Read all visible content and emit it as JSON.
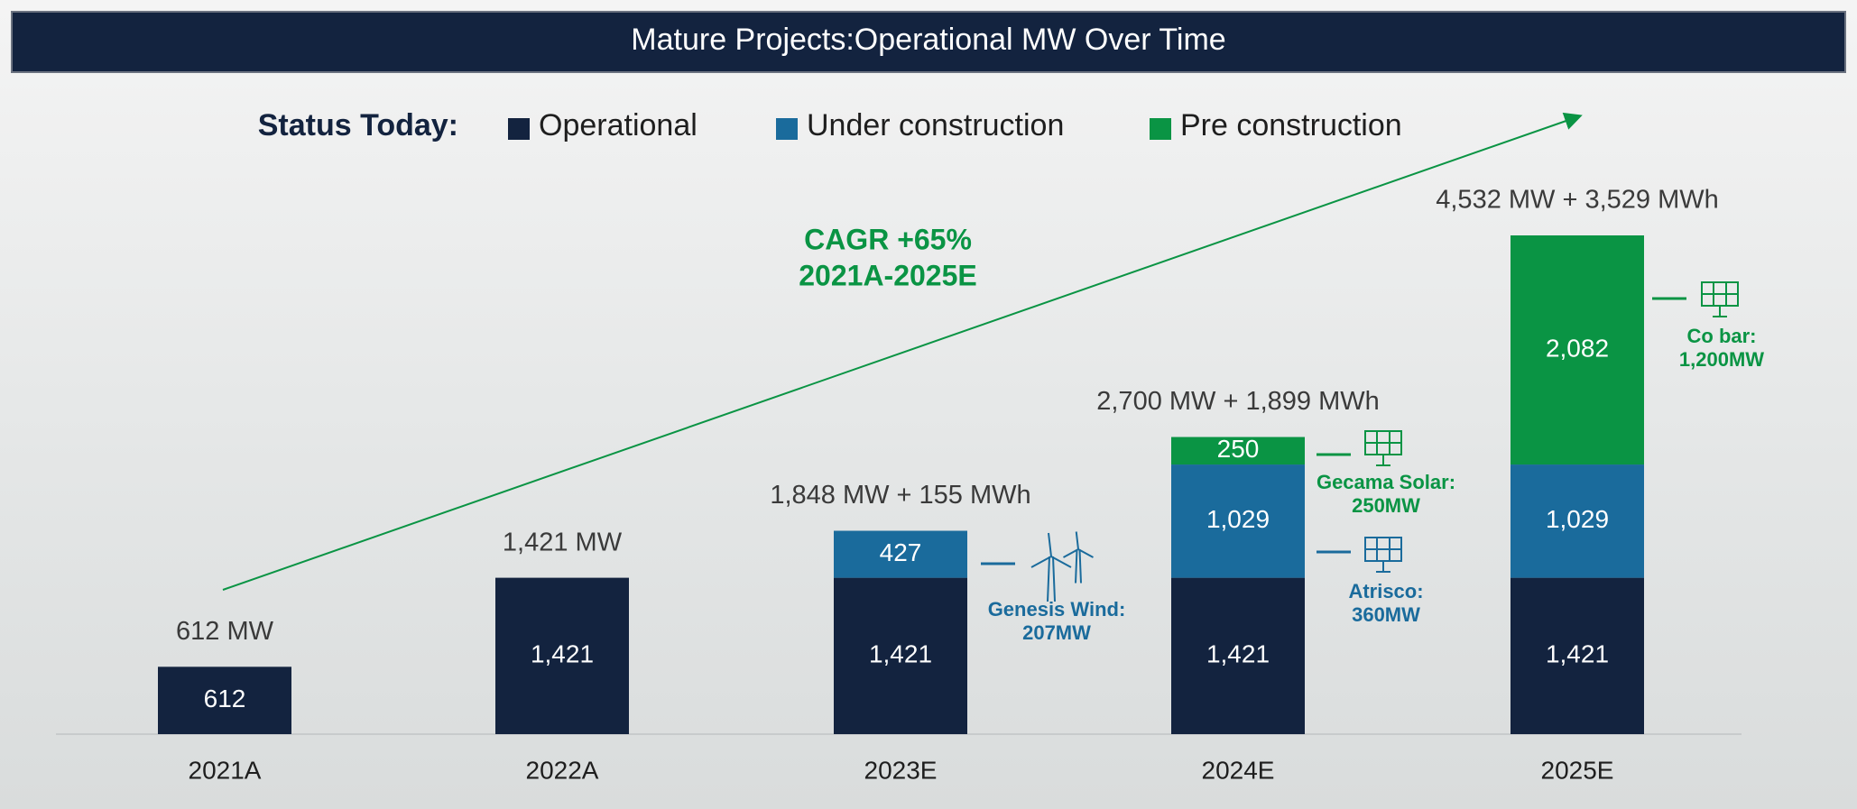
{
  "chart_data": {
    "type": "stacked_bar",
    "title": "Mature Projects:Operational MW Over Time",
    "legend_title": "Status Today:",
    "categories": [
      "2021A",
      "2022A",
      "2023E",
      "2024E",
      "2025E"
    ],
    "series": [
      {
        "name": "Operational",
        "color": "#13233f",
        "values": [
          612,
          1421,
          1421,
          1421,
          1421
        ],
        "value_labels": [
          "612",
          "1,421",
          "1,421",
          "1,421",
          "1,421"
        ]
      },
      {
        "name": "Under construction",
        "color": "#1a6b9c",
        "values": [
          null,
          null,
          427,
          1029,
          1029
        ],
        "value_labels": [
          null,
          null,
          "427",
          "1,029",
          "1,029"
        ]
      },
      {
        "name": "Pre construction",
        "color": "#0a9444",
        "values": [
          null,
          null,
          null,
          250,
          2082
        ],
        "value_labels": [
          null,
          null,
          null,
          "250",
          "2,082"
        ]
      }
    ],
    "total_labels": [
      "612 MW",
      "1,421 MW",
      "1,848 MW + 155 MWh",
      "2,700 MW + 1,899 MWh",
      "4,532 MW + 3,529 MWh"
    ],
    "cagr": {
      "lines": [
        "CAGR +65%",
        "2021A-2025E"
      ],
      "color": "#0a9444"
    },
    "callouts": [
      {
        "lines": [
          "Genesis Wind:",
          "207MW"
        ],
        "color": "#1a6b9c"
      },
      {
        "lines": [
          "Gecama Solar:",
          "250MW"
        ],
        "color": "#0a9444"
      },
      {
        "lines": [
          "Atrisco:",
          "360MW"
        ],
        "color": "#1a6b9c"
      },
      {
        "lines": [
          "Co bar:",
          "1,200MW"
        ],
        "color": "#0a9444"
      }
    ]
  }
}
